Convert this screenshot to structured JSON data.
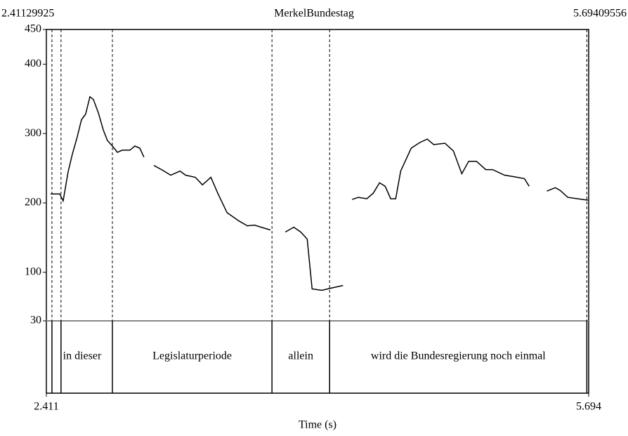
{
  "chart_data": {
    "type": "line",
    "title": "MerkelBundestag",
    "x_label": "Time (s)",
    "xlim": [
      2.41129925,
      5.69409556
    ],
    "xticks": [
      {
        "value": 2.41129925,
        "label": "2.411"
      },
      {
        "value": 5.69409556,
        "label": "5.694"
      }
    ],
    "ylim": [
      30,
      450
    ],
    "yticks": [
      30,
      100,
      200,
      300,
      400,
      450
    ],
    "color": "#000000",
    "x": [
      2.437,
      2.492,
      2.513,
      2.543,
      2.568,
      2.598,
      2.624,
      2.649,
      2.675,
      2.696,
      2.726,
      2.756,
      2.781,
      2.811,
      2.841,
      2.871,
      2.917,
      2.947,
      2.977,
      3.002,
      null,
      3.062,
      3.109,
      3.164,
      3.22,
      3.254,
      3.313,
      3.356,
      3.407,
      3.449,
      3.505,
      3.577,
      3.628,
      3.671,
      3.726,
      3.768,
      null,
      3.858,
      3.909,
      3.951,
      3.99,
      4.02,
      4.079,
      4.13,
      4.207,
      null,
      4.262,
      4.3,
      4.351,
      4.39,
      4.428,
      4.462,
      4.496,
      4.526,
      4.556,
      4.62,
      4.671,
      4.717,
      4.756,
      4.824,
      4.875,
      4.926,
      4.968,
      5.015,
      5.071,
      5.113,
      5.185,
      5.237,
      5.305,
      5.334,
      null,
      5.441,
      5.492,
      5.522,
      5.568,
      5.628,
      5.69
    ],
    "values": [
      213,
      213,
      203,
      245,
      270,
      295,
      320,
      328,
      353,
      349,
      330,
      305,
      290,
      282,
      273,
      276,
      276,
      282,
      279,
      266,
      null,
      254,
      248,
      240,
      246,
      240,
      237,
      226,
      237,
      214,
      186,
      174,
      167,
      168,
      164,
      161,
      null,
      158,
      165,
      158,
      148,
      76,
      74,
      77,
      81,
      null,
      205,
      208,
      206,
      214,
      229,
      224,
      206,
      206,
      246,
      279,
      287,
      292,
      284,
      286,
      275,
      242,
      260,
      260,
      248,
      248,
      240,
      238,
      235,
      224,
      null,
      217,
      222,
      218,
      208,
      206,
      204
    ],
    "tier": {
      "boundaries": [
        2.445,
        2.5,
        2.811,
        3.777,
        4.126,
        5.683
      ],
      "intervals": [
        {
          "label": "in dieser",
          "start": 2.445,
          "end": 2.811
        },
        {
          "label": "Legislaturperiode",
          "start": 2.811,
          "end": 3.777
        },
        {
          "label": "allein",
          "start": 3.777,
          "end": 4.126
        },
        {
          "label": "wird die Bundesregierung noch einmal",
          "start": 4.126,
          "end": 5.683
        }
      ]
    }
  }
}
